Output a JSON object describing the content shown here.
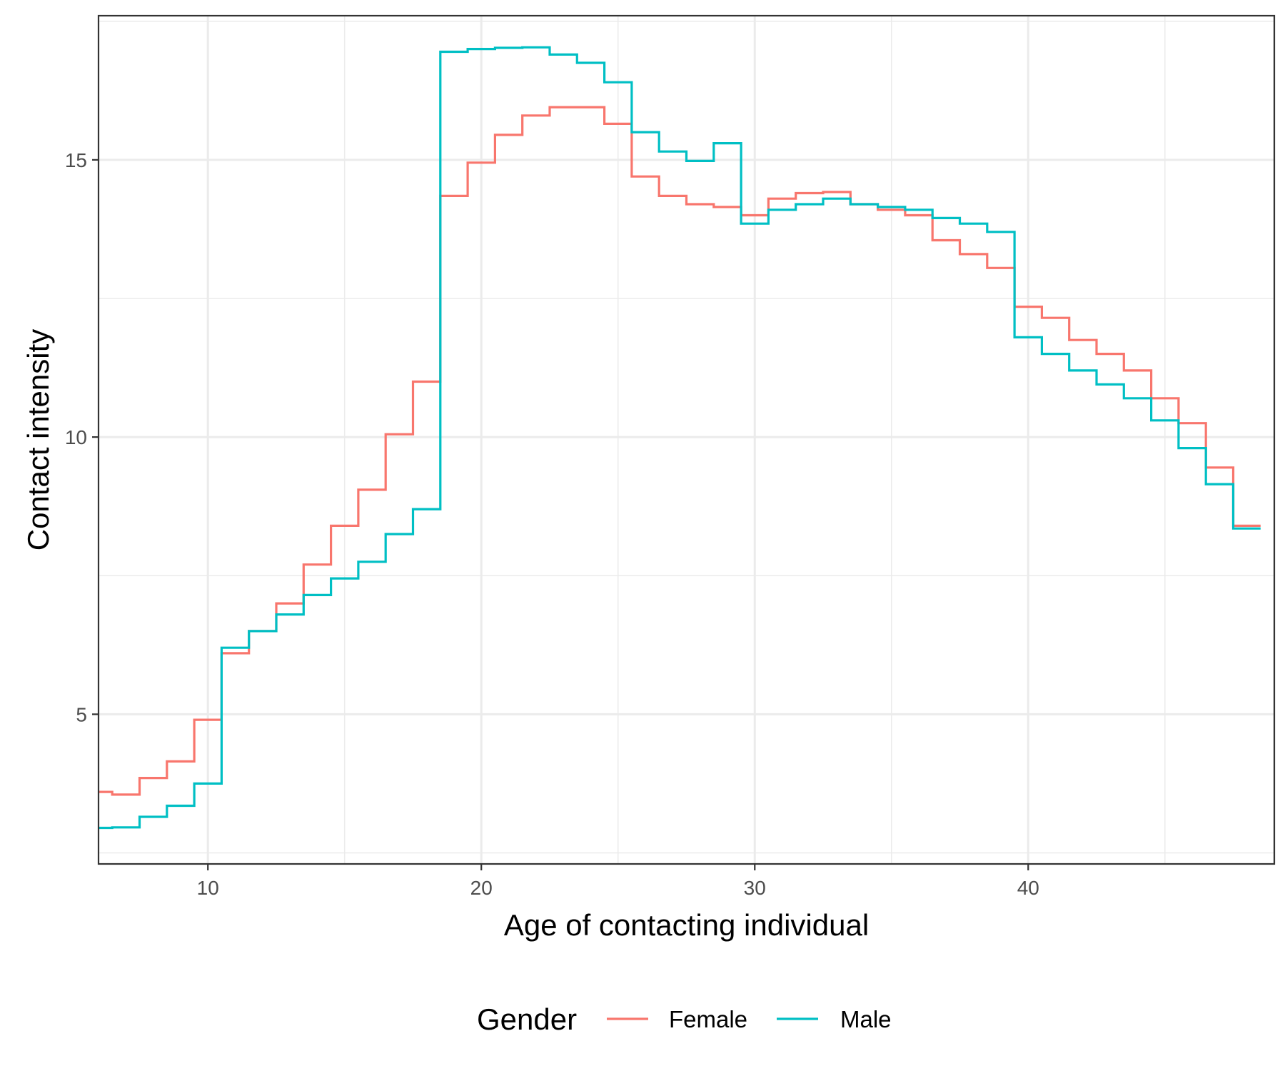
{
  "chart_data": {
    "type": "line",
    "step": true,
    "xlabel": "Age of contacting individual",
    "ylabel": "Contact intensity",
    "xlim": [
      6,
      49
    ],
    "ylim": [
      2.3,
      17.6
    ],
    "x_ticks": [
      10,
      20,
      30,
      40
    ],
    "x_tick_labels": [
      "10",
      "20",
      "30",
      "40"
    ],
    "y_ticks": [
      5,
      10,
      15
    ],
    "y_tick_labels": [
      "5",
      "10",
      "15"
    ],
    "x_minor": [
      15,
      25,
      35,
      45
    ],
    "y_minor": [
      2.5,
      7.5,
      12.5,
      17.5
    ],
    "grid": true,
    "legend": {
      "title": "Gender",
      "position": "bottom"
    },
    "x": [
      6,
      7,
      8,
      9,
      10,
      11,
      12,
      13,
      14,
      15,
      16,
      17,
      18,
      19,
      20,
      21,
      22,
      23,
      24,
      25,
      26,
      27,
      28,
      29,
      30,
      31,
      32,
      33,
      34,
      35,
      36,
      37,
      38,
      39,
      40,
      41,
      42,
      43,
      44,
      45,
      46,
      47,
      48
    ],
    "series": [
      {
        "name": "Female",
        "color": "#F8766D",
        "values": [
          3.6,
          3.55,
          3.85,
          4.15,
          4.9,
          6.1,
          6.5,
          7.0,
          7.7,
          8.4,
          9.05,
          10.05,
          11.0,
          14.35,
          14.95,
          15.45,
          15.8,
          15.95,
          15.95,
          15.65,
          14.7,
          14.35,
          14.2,
          14.15,
          14.0,
          14.3,
          14.4,
          14.42,
          14.2,
          14.1,
          14.0,
          13.55,
          13.3,
          13.05,
          12.35,
          12.15,
          11.75,
          11.5,
          11.2,
          10.7,
          10.25,
          9.45,
          8.4
        ]
      },
      {
        "name": "Male",
        "color": "#00BFC4",
        "values": [
          2.95,
          2.96,
          3.15,
          3.35,
          3.75,
          6.2,
          6.5,
          6.8,
          7.15,
          7.45,
          7.75,
          8.25,
          8.7,
          16.95,
          17.0,
          17.02,
          17.03,
          16.9,
          16.75,
          16.4,
          15.5,
          15.15,
          14.98,
          15.3,
          13.85,
          14.1,
          14.2,
          14.3,
          14.2,
          14.15,
          14.1,
          13.95,
          13.85,
          13.7,
          11.8,
          11.5,
          11.2,
          10.95,
          10.7,
          10.3,
          9.8,
          9.15,
          8.35
        ]
      }
    ]
  }
}
